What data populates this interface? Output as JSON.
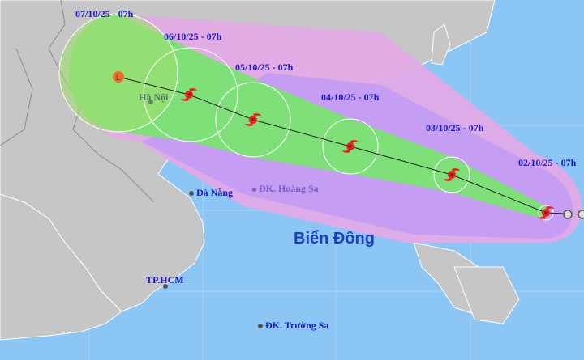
{
  "colors": {
    "sea": "#8cc6f4",
    "land": "#c6c6c6",
    "risk_zone": "#e3a8e6",
    "strong_wind_zone": "#c39cf2",
    "storm_zone": "#7fe07a",
    "forecast_circle": "#ffffff",
    "storm_icon": "#ee1c1c",
    "track_line": "#222222"
  },
  "track": [
    {
      "label": "02/10/25 - 07h",
      "icon": "typhoon-icon"
    },
    {
      "label": "03/10/25 - 07h",
      "icon": "typhoon-icon"
    },
    {
      "label": "04/10/25 - 07h",
      "icon": "typhoon-icon"
    },
    {
      "label": "05/10/25 - 07h",
      "icon": "typhoon-icon"
    },
    {
      "label": "06/10/25 - 07h",
      "icon": "typhoon-icon"
    },
    {
      "label": "07/10/25 - 07h",
      "icon": "low-pressure-icon",
      "symbol": "L"
    }
  ],
  "places": {
    "hanoi": "Hà Nội",
    "danang": "Đà Nẵng",
    "hoangsa": "ĐK. Hoàng Sa",
    "sea": "Biển Đông",
    "hcm": "TP.HCM",
    "truongsa": "ĐK. Trường Sa"
  }
}
